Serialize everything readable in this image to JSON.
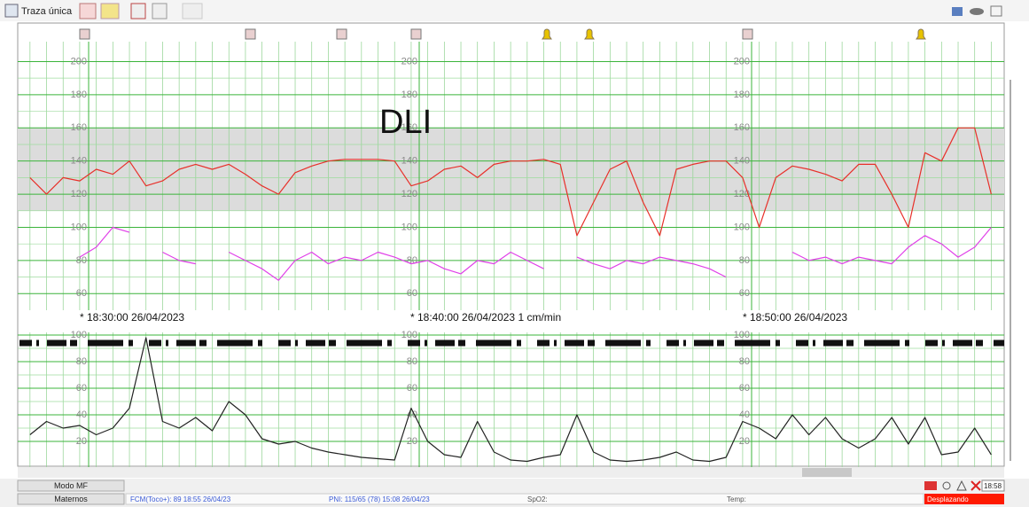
{
  "toolbar": {
    "title": "Traza única"
  },
  "annotation": "DLI",
  "timestamps": [
    "* 18:30:00 26/04/2023",
    "* 18:40:00 26/04/2023  1 cm/min",
    "* 18:50:00 26/04/2023"
  ],
  "chart_data": [
    {
      "type": "line",
      "xlim": [
        28.13,
        57.89
      ],
      "ylim": [
        50,
        212
      ],
      "yticks": [
        60,
        80,
        100,
        120,
        140,
        160,
        180,
        200
      ],
      "normal_range": [
        110,
        160
      ],
      "grid": true,
      "x": [
        28.5,
        29,
        29.5,
        30,
        30.5,
        31,
        31.5,
        32,
        32.5,
        33,
        33.5,
        34,
        34.5,
        35,
        35.5,
        36,
        36.5,
        37,
        37.5,
        38,
        38.5,
        39,
        39.5,
        40,
        40.5,
        41,
        41.5,
        42,
        42.5,
        43,
        43.5,
        44,
        44.5,
        45,
        45.5,
        46,
        46.5,
        47,
        47.5,
        48,
        48.5,
        49,
        49.5,
        50,
        50.5,
        51,
        51.5,
        52,
        52.5,
        53,
        53.5,
        54,
        54.5,
        55,
        55.5,
        56,
        56.5,
        57,
        57.5
      ],
      "series": [
        {
          "color": "#e8302a",
          "values": [
            130,
            120,
            130,
            128,
            135,
            132,
            140,
            125,
            128,
            135,
            138,
            135,
            138,
            132,
            125,
            120,
            133,
            137,
            140,
            141,
            141,
            141,
            140,
            125,
            128,
            135,
            137,
            130,
            138,
            140,
            140,
            141,
            138,
            95,
            115,
            135,
            140,
            115,
            95,
            135,
            138,
            140,
            140,
            130,
            100,
            130,
            137,
            135,
            132,
            128,
            138,
            138,
            120,
            100,
            145,
            140,
            160,
            160,
            120
          ]
        },
        {
          "color": "#e040e8",
          "values": [
            null,
            null,
            null,
            82,
            88,
            100,
            97,
            null,
            85,
            80,
            78,
            null,
            85,
            80,
            75,
            68,
            80,
            85,
            78,
            82,
            80,
            85,
            82,
            78,
            80,
            75,
            72,
            80,
            78,
            85,
            80,
            75,
            null,
            82,
            78,
            75,
            80,
            78,
            82,
            80,
            78,
            75,
            70,
            null,
            null,
            null,
            85,
            80,
            82,
            78,
            82,
            80,
            78,
            88,
            95,
            90,
            82,
            88,
            100
          ]
        }
      ]
    },
    {
      "type": "line",
      "xlim": [
        28.13,
        57.89
      ],
      "ylim": [
        0,
        102
      ],
      "yticks": [
        20,
        40,
        60,
        80,
        100
      ],
      "grid": true,
      "x": [
        28.5,
        29,
        29.5,
        30,
        30.5,
        31,
        31.5,
        32,
        32.5,
        33,
        33.5,
        34,
        34.5,
        35,
        35.5,
        36,
        36.5,
        37,
        37.5,
        38,
        38.5,
        39,
        39.5,
        40,
        40.5,
        41,
        41.5,
        42,
        42.5,
        43,
        43.5,
        44,
        44.5,
        45,
        45.5,
        46,
        46.5,
        47,
        47.5,
        48,
        48.5,
        49,
        49.5,
        50,
        50.5,
        51,
        51.5,
        52,
        52.5,
        53,
        53.5,
        54,
        54.5,
        55,
        55.5,
        56,
        56.5,
        57,
        57.5
      ],
      "series": [
        {
          "color": "#222222",
          "values": [
            25,
            35,
            30,
            32,
            25,
            30,
            45,
            98,
            35,
            30,
            38,
            28,
            50,
            40,
            22,
            18,
            20,
            15,
            12,
            10,
            8,
            7,
            6,
            45,
            20,
            10,
            8,
            35,
            12,
            6,
            5,
            8,
            10,
            40,
            12,
            6,
            5,
            6,
            8,
            12,
            6,
            5,
            8,
            35,
            30,
            22,
            40,
            25,
            38,
            22,
            15,
            22,
            38,
            18,
            38,
            10,
            12,
            30,
            10
          ]
        }
      ]
    }
  ],
  "status": {
    "mode": "Modo MF",
    "maternal": "Maternos",
    "fcm": "FCM(Toco+): 89 18:55 26/04/23",
    "pni": "PNI: 115/65 (78) 15:08 26/04/23",
    "spo2": "SpO2:",
    "temp": "Temp:",
    "scroll_state": "Desplazando",
    "clock": "18:58"
  }
}
